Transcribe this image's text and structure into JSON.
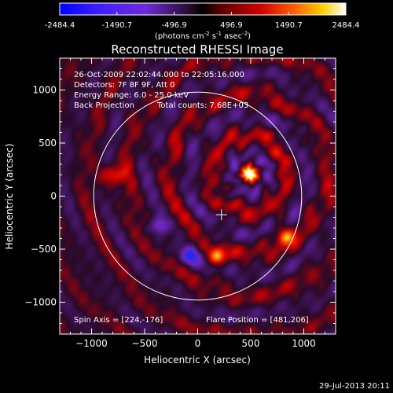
{
  "colorbar": {
    "ticks": [
      "-2484.4",
      "-1490.7",
      "-496.9",
      "496.9",
      "1490.7",
      "2484.4"
    ],
    "units_main": "(photons cm",
    "units_sup1": "-2",
    "units_mid1": " s",
    "units_sup2": "-1",
    "units_mid2": " asec",
    "units_sup3": "-2",
    "units_end": ")"
  },
  "title": "Reconstructed RHESSI Image",
  "info": {
    "line1": "26-Oct-2009 22:02:44.000 to 22:05:16.000",
    "line2": "Detectors: 7F 8F 9F, Att 0",
    "line3": "Energy Range: 6.0 - 25.0 keV",
    "line4a": "Back Projection",
    "line4b": "Total counts: 7.68E+03",
    "spin_axis": "Spin Axis = [224,-176]",
    "flare_position": "Flare Position = [481,206]"
  },
  "footer": {
    "timestamp": "29-Jul-2013 20:11"
  },
  "colors": {
    "background": "#000000",
    "axes": "#ffffff",
    "limb": "#ffffff"
  },
  "chart_data": {
    "type": "heatmap",
    "title": "Reconstructed RHESSI Image",
    "xlabel": "Heliocentric X (arcsec)",
    "ylabel": "Heliocentric Y (arcsec)",
    "xlim": [
      -1300,
      1300
    ],
    "ylim": [
      -1300,
      1300
    ],
    "xticks": [
      -1000,
      -500,
      0,
      500,
      1000
    ],
    "yticks": [
      -1000,
      -500,
      0,
      500,
      1000
    ],
    "xtick_labels": [
      "−1000",
      "−500",
      "0",
      "500",
      "1000"
    ],
    "ytick_labels": [
      "−1000",
      "−500",
      "0",
      "500",
      "1000"
    ],
    "color_range": [
      -2484.4,
      2484.4
    ],
    "colormap": "blue-black-red-yellow-white",
    "solar_limb_radius": 980,
    "limb_center": [
      0,
      0
    ],
    "spin_axis": [
      224,
      -176
    ],
    "flare_position": [
      481,
      206
    ],
    "peak": {
      "x": 481,
      "y": 206,
      "value": 2484.4
    },
    "sources": [
      {
        "x": 481,
        "y": 206,
        "value": 2484.4,
        "spread": 55
      },
      {
        "x": -60,
        "y": -560,
        "value": -1700,
        "spread": 60
      },
      {
        "x": -360,
        "y": -280,
        "value": -1400,
        "spread": 55
      },
      {
        "x": 190,
        "y": -580,
        "value": 1800,
        "spread": 55
      },
      {
        "x": 820,
        "y": -380,
        "value": 1750,
        "spread": 60
      },
      {
        "x": -800,
        "y": 200,
        "value": 1500,
        "spread": 70
      }
    ]
  }
}
